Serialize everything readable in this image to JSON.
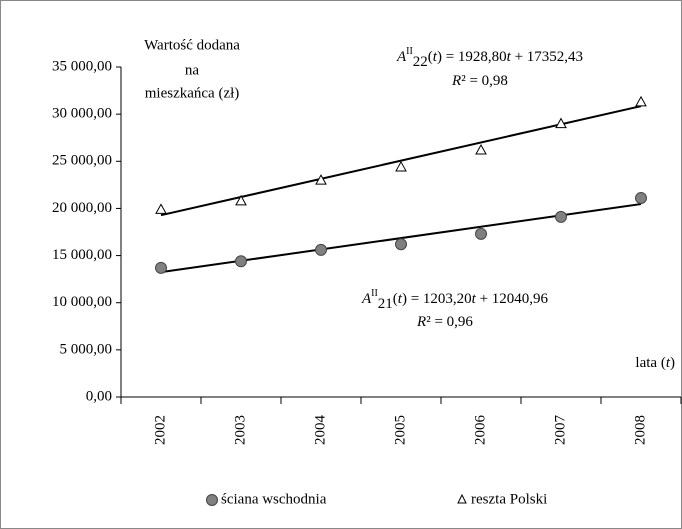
{
  "chart_data": {
    "type": "line",
    "y_axis_title": [
      "Wartość dodana",
      "na",
      "mieszkańca (zł)"
    ],
    "x_axis_title": [
      "lata (",
      "t",
      ")"
    ],
    "categories": [
      "2002",
      "2003",
      "2004",
      "2005",
      "2006",
      "2007",
      "2008"
    ],
    "series": [
      {
        "name": "ściana wschodnia",
        "color": "#808080",
        "marker": "circle",
        "values": [
          13700,
          14400,
          15600,
          16200,
          17300,
          19100,
          21100
        ],
        "trend": {
          "slope": 1203.2,
          "intercept": 12040.96
        },
        "equation": [
          "A",
          "II",
          "21",
          "(",
          "t",
          ") = 1203,20",
          "t",
          " + 12040,96"
        ],
        "r2": [
          "R",
          "² = 0,96"
        ]
      },
      {
        "name": "reszta Polski",
        "color": "#ffffff",
        "marker": "triangle",
        "values": [
          19900,
          20800,
          23000,
          24400,
          26200,
          29000,
          31300
        ],
        "trend": {
          "slope": 1928.8,
          "intercept": 17352.43
        },
        "equation": [
          "A",
          "II",
          "22",
          "(",
          "t",
          ") = 1928,80",
          "t",
          " + 17352,43"
        ],
        "r2": [
          "R",
          "² = 0,98"
        ]
      }
    ],
    "ylim": [
      0,
      35000
    ],
    "yticks": [
      {
        "value": 0,
        "label": "0,00"
      },
      {
        "value": 5000,
        "label": "5 000,00"
      },
      {
        "value": 10000,
        "label": "10 000,00"
      },
      {
        "value": 15000,
        "label": "15 000,00"
      },
      {
        "value": 20000,
        "label": "20 000,00"
      },
      {
        "value": 25000,
        "label": "25 000,00"
      },
      {
        "value": 30000,
        "label": "30 000,00"
      },
      {
        "value": 35000,
        "label": "35 000,00"
      }
    ],
    "grid": false,
    "legend": "bottom"
  }
}
